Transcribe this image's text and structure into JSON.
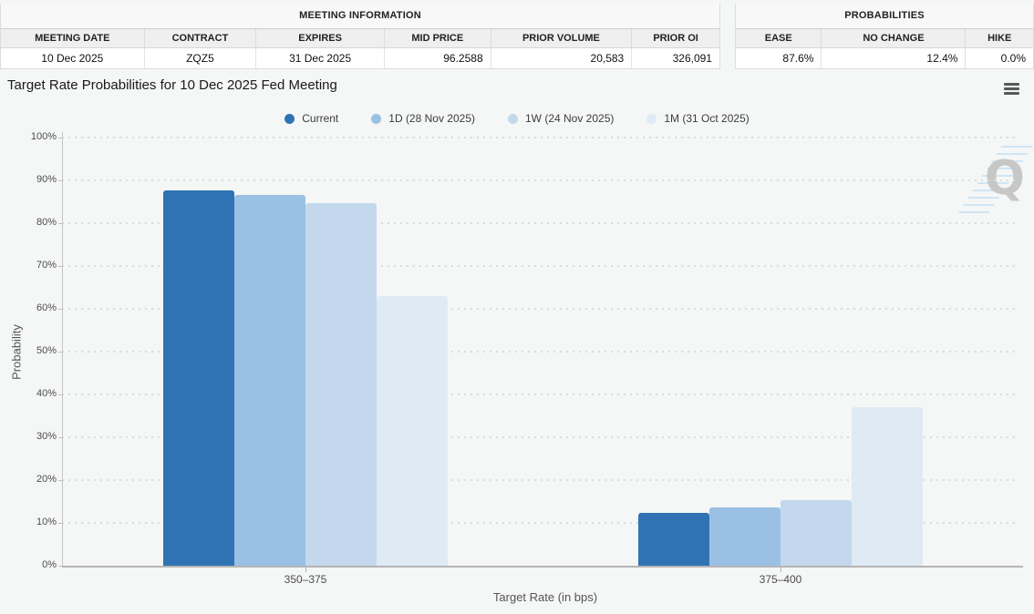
{
  "meeting_information": {
    "title": "MEETING INFORMATION",
    "columns": [
      "MEETING DATE",
      "CONTRACT",
      "EXPIRES",
      "MID PRICE",
      "PRIOR VOLUME",
      "PRIOR OI"
    ],
    "row": [
      "10 Dec 2025",
      "ZQZ5",
      "31 Dec 2025",
      "96.2588",
      "20,583",
      "326,091"
    ]
  },
  "probabilities_summary": {
    "title": "PROBABILITIES",
    "columns": [
      "EASE",
      "NO CHANGE",
      "HIKE"
    ],
    "row": [
      "87.6%",
      "12.4%",
      "0.0%"
    ]
  },
  "chart_data": {
    "type": "bar",
    "title": "Target Rate Probabilities for 10 Dec 2025 Fed Meeting",
    "categories": [
      "350–375",
      "375–400"
    ],
    "series": [
      {
        "name": "Current",
        "color": "#2f73b4",
        "values": [
          87.6,
          12.4
        ]
      },
      {
        "name": "1D (28 Nov 2025)",
        "color": "#9ac0e4",
        "values": [
          86.5,
          13.5
        ]
      },
      {
        "name": "1W (24 Nov 2025)",
        "color": "#c3d8ec",
        "values": [
          84.6,
          15.4
        ]
      },
      {
        "name": "1M (31 Oct 2025)",
        "color": "#dfeaf4",
        "values": [
          63.0,
          37.0
        ]
      }
    ],
    "xlabel": "Target Rate (in bps)",
    "ylabel": "Probability",
    "ylim": [
      0,
      100
    ],
    "ytick_step": 10,
    "ytick_suffix": "%",
    "grid": "dotted-horizontal",
    "legend_position": "top-center"
  },
  "icons": {
    "menu": "hamburger-icon"
  },
  "watermark_letter": "Q",
  "colors": {
    "background": "#f5f6f6",
    "axis": "#b5b5b5",
    "grid_dot": "#dbdbdb"
  }
}
